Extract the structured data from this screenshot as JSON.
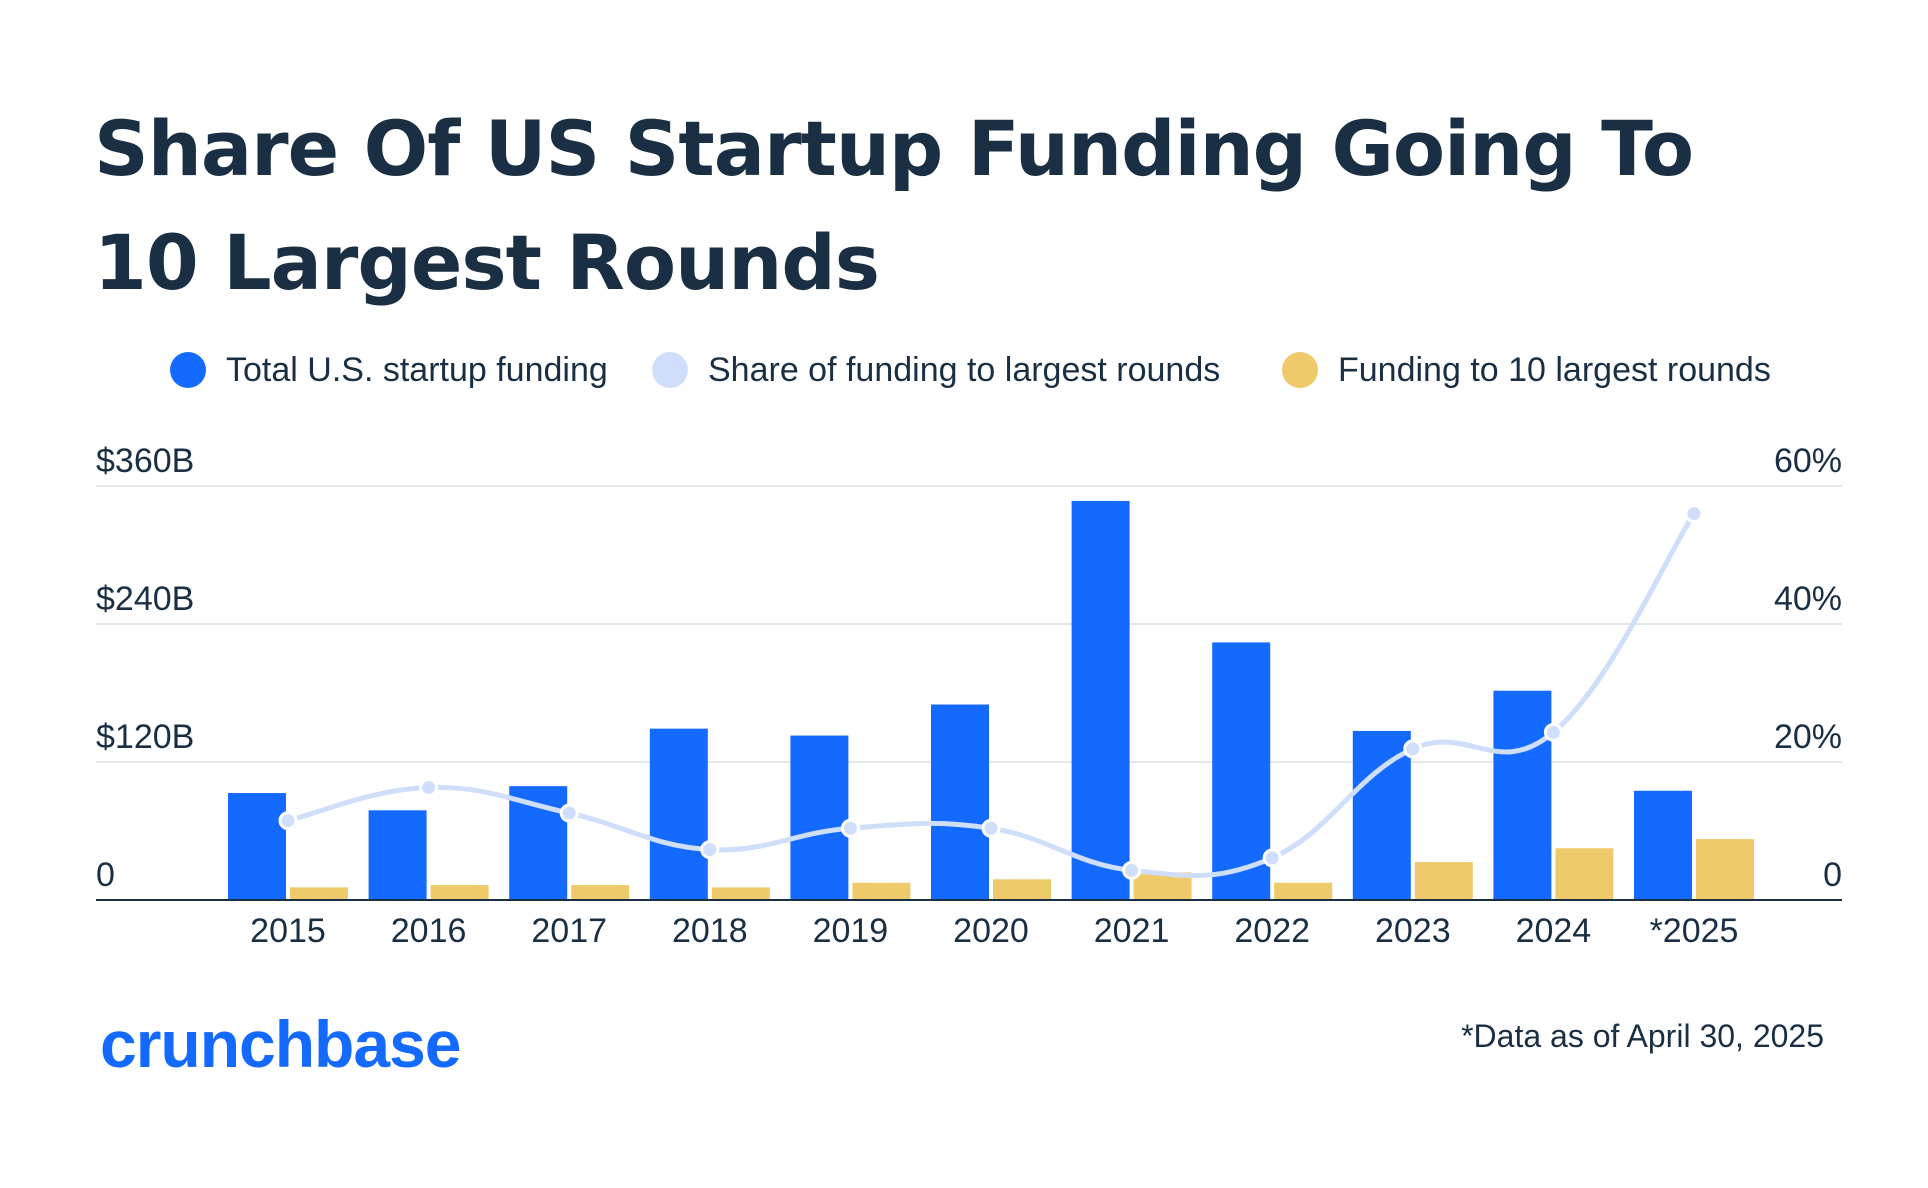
{
  "title_line1": "Share Of US Startup Funding Going To",
  "title_line2": "10 Largest Rounds",
  "legend": [
    {
      "label": "Total U.S. startup funding",
      "color": "#146aff"
    },
    {
      "label": "Share of funding to largest rounds",
      "color": "#cfdefa"
    },
    {
      "label": "Funding to 10 largest rounds",
      "color": "#efca6b"
    }
  ],
  "footnote": "*Data as of April 30, 2025",
  "logo_text": "crunchbase",
  "chart_data": {
    "type": "bar",
    "categories": [
      "2015",
      "2016",
      "2017",
      "2018",
      "2019",
      "2020",
      "2021",
      "2022",
      "2023",
      "2024",
      "*2025"
    ],
    "series": [
      {
        "name": "Total U.S. startup funding",
        "type": "bar",
        "axis": "left",
        "unit": "$B",
        "color": "#146aff",
        "values": [
          93,
          78,
          99,
          149,
          143,
          170,
          347,
          224,
          147,
          182,
          95
        ]
      },
      {
        "name": "Funding to 10 largest rounds",
        "type": "bar",
        "axis": "left",
        "unit": "$B",
        "color": "#efca6b",
        "values": [
          11,
          13,
          13,
          11,
          15,
          18,
          24,
          15,
          33,
          45,
          53
        ]
      },
      {
        "name": "Share of funding to largest rounds",
        "type": "line",
        "axis": "right",
        "unit": "%",
        "color": "#cfdefa",
        "values": [
          11.5,
          16.3,
          12.6,
          7.3,
          10.4,
          10.4,
          4.3,
          6.1,
          21.9,
          24.3,
          56
        ]
      }
    ],
    "left_axis": {
      "ylim": [
        0,
        360
      ],
      "ticks": [
        0,
        120,
        240,
        360
      ],
      "tick_labels": [
        "0",
        "$120B",
        "$240B",
        "$360B"
      ]
    },
    "right_axis": {
      "ylim": [
        0,
        60
      ],
      "ticks": [
        0,
        20,
        40,
        60
      ],
      "tick_labels": [
        "0",
        "20%",
        "40%",
        "60%"
      ]
    },
    "grid": true,
    "legend_position": "top"
  }
}
